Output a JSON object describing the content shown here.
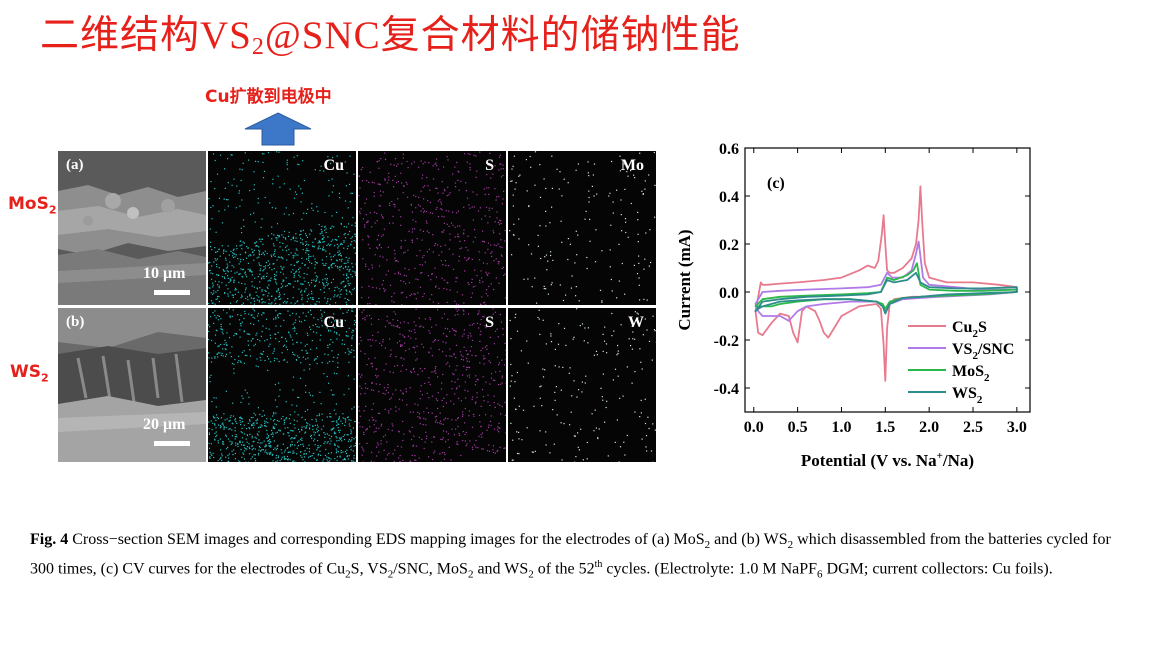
{
  "slide": {
    "title_pre": "二维结构",
    "title_vs": "VS",
    "title_sub": "2",
    "title_post_latin": "@SNC",
    "title_post": "复合材料的储钠性能"
  },
  "arrow_label": "Cu扩散到电极中",
  "rows": [
    {
      "label": "MoS",
      "label_sub": "2",
      "sem_label": "(a)",
      "scale": "10 μm",
      "elements": [
        "Cu",
        "S",
        "Mo"
      ]
    },
    {
      "label": "WS",
      "label_sub": "2",
      "sem_label": "(b)",
      "scale": "20 μm",
      "elements": [
        "Cu",
        "S",
        "W"
      ]
    }
  ],
  "colors": {
    "red": "#e6211b",
    "arrow": "#3d78c8",
    "cu_map": "#27c0c0",
    "s_map": "#a53aa5",
    "mo_map": "#cfe8cf"
  },
  "chart_data": {
    "type": "line",
    "panel_label": "(c)",
    "xlabel": "Potential (V vs. Na",
    "xlabel_sup": "+",
    "xlabel_end": "/Na)",
    "ylabel": "Current (mA)",
    "xlim": [
      -0.1,
      3.15
    ],
    "ylim": [
      -0.5,
      0.6
    ],
    "xticks": [
      "0.0",
      "0.5",
      "1.0",
      "1.5",
      "2.0",
      "2.5",
      "3.0"
    ],
    "yticks": [
      "0.6",
      "0.4",
      "0.2",
      "0.0",
      "-0.2",
      "-0.4"
    ],
    "legend_position": "lower-right",
    "series": [
      {
        "name": "Cu2S",
        "color": "#e87a8e",
        "x": [
          0.02,
          0.05,
          0.08,
          0.1,
          0.15,
          0.3,
          0.5,
          0.8,
          1.0,
          1.2,
          1.3,
          1.38,
          1.42,
          1.46,
          1.48,
          1.5,
          1.52,
          1.55,
          1.6,
          1.7,
          1.8,
          1.85,
          1.88,
          1.9,
          1.92,
          1.95,
          2.0,
          2.2,
          2.5,
          2.8,
          3.0,
          3.0,
          2.8,
          2.5,
          2.3,
          2.2,
          2.0,
          1.9,
          1.8,
          1.7,
          1.6,
          1.55,
          1.52,
          1.5,
          1.48,
          1.45,
          1.4,
          1.2,
          1.0,
          0.9,
          0.85,
          0.8,
          0.75,
          0.7,
          0.6,
          0.55,
          0.5,
          0.45,
          0.4,
          0.3,
          0.2,
          0.1,
          0.05,
          0.02
        ],
        "y": [
          -0.08,
          -0.02,
          0.04,
          0.03,
          0.03,
          0.035,
          0.04,
          0.05,
          0.06,
          0.09,
          0.11,
          0.1,
          0.13,
          0.24,
          0.32,
          0.2,
          0.09,
          0.08,
          0.08,
          0.1,
          0.14,
          0.2,
          0.3,
          0.44,
          0.3,
          0.12,
          0.06,
          0.04,
          0.04,
          0.03,
          0.02,
          0.0,
          -0.005,
          -0.01,
          -0.01,
          -0.015,
          -0.02,
          -0.02,
          -0.02,
          -0.025,
          -0.03,
          -0.05,
          -0.15,
          -0.37,
          -0.22,
          -0.07,
          -0.05,
          -0.06,
          -0.1,
          -0.16,
          -0.19,
          -0.17,
          -0.12,
          -0.08,
          -0.06,
          -0.08,
          -0.21,
          -0.17,
          -0.1,
          -0.09,
          -0.13,
          -0.18,
          -0.17,
          -0.08
        ]
      },
      {
        "name": "VS2/SNC",
        "color": "#b07ae8",
        "x": [
          0.02,
          0.1,
          0.3,
          0.6,
          1.0,
          1.3,
          1.45,
          1.52,
          1.58,
          1.7,
          1.8,
          1.85,
          1.88,
          1.9,
          1.93,
          2.0,
          2.3,
          2.6,
          3.0,
          3.0,
          2.7,
          2.4,
          2.1,
          1.9,
          1.7,
          1.55,
          1.5,
          1.47,
          1.4,
          1.1,
          0.8,
          0.6,
          0.5,
          0.4,
          0.3,
          0.2,
          0.1,
          0.05,
          0.02
        ],
        "y": [
          -0.05,
          0.0,
          0.005,
          0.01,
          0.015,
          0.02,
          0.03,
          0.08,
          0.06,
          0.06,
          0.09,
          0.16,
          0.21,
          0.15,
          0.06,
          0.03,
          0.02,
          0.01,
          0.01,
          0.0,
          -0.01,
          -0.015,
          -0.02,
          -0.025,
          -0.03,
          -0.05,
          -0.08,
          -0.06,
          -0.04,
          -0.04,
          -0.05,
          -0.06,
          -0.08,
          -0.12,
          -0.1,
          -0.1,
          -0.1,
          -0.08,
          -0.05
        ]
      },
      {
        "name": "MoS2",
        "color": "#2bb84a",
        "x": [
          0.02,
          0.1,
          0.3,
          0.6,
          1.0,
          1.3,
          1.45,
          1.52,
          1.6,
          1.75,
          1.82,
          1.86,
          1.88,
          1.9,
          2.0,
          2.3,
          2.6,
          3.0,
          3.0,
          2.6,
          2.2,
          1.9,
          1.7,
          1.55,
          1.5,
          1.47,
          1.4,
          1.1,
          0.8,
          0.5,
          0.3,
          0.2,
          0.1,
          0.05,
          0.02
        ],
        "y": [
          -0.06,
          -0.03,
          -0.02,
          -0.015,
          -0.01,
          -0.005,
          0.0,
          0.06,
          0.05,
          0.07,
          0.09,
          0.12,
          0.08,
          0.03,
          0.01,
          0.005,
          0.005,
          0.01,
          0.0,
          -0.01,
          -0.015,
          -0.02,
          -0.025,
          -0.04,
          -0.07,
          -0.05,
          -0.04,
          -0.03,
          -0.03,
          -0.04,
          -0.05,
          -0.06,
          -0.06,
          -0.06,
          -0.06
        ]
      },
      {
        "name": "WS2",
        "color": "#2e8c8c",
        "x": [
          0.02,
          0.1,
          0.3,
          0.6,
          1.0,
          1.3,
          1.45,
          1.52,
          1.6,
          1.75,
          1.85,
          1.9,
          2.0,
          2.3,
          2.6,
          3.0,
          3.0,
          2.6,
          2.2,
          1.9,
          1.7,
          1.55,
          1.5,
          1.47,
          1.4,
          1.1,
          0.8,
          0.5,
          0.3,
          0.2,
          0.1,
          0.05,
          0.02
        ],
        "y": [
          -0.08,
          -0.04,
          -0.03,
          -0.02,
          -0.015,
          -0.01,
          0.0,
          0.05,
          0.04,
          0.05,
          0.08,
          0.04,
          0.02,
          0.015,
          0.015,
          0.02,
          0.0,
          -0.005,
          -0.01,
          -0.02,
          -0.025,
          -0.05,
          -0.09,
          -0.06,
          -0.04,
          -0.03,
          -0.03,
          -0.035,
          -0.04,
          -0.05,
          -0.06,
          -0.07,
          -0.08
        ]
      }
    ]
  },
  "legend": [
    {
      "base": "Cu",
      "sub": "2",
      "tail": "S"
    },
    {
      "base": "VS",
      "sub": "2",
      "tail": "/SNC"
    },
    {
      "base": "MoS",
      "sub": "2",
      "tail": ""
    },
    {
      "base": "WS",
      "sub": "2",
      "tail": ""
    }
  ],
  "caption": {
    "fig": "Fig. 4",
    "t1": " Cross−section SEM images and corresponding EDS mapping images for the electrodes of (a) MoS",
    "t2": "  and (b) WS",
    "t3": " which disassembled from the batteries cycled for 300 times, (c) CV curves for the electrodes of Cu",
    "t4": "S, VS",
    "t5": "/SNC, MoS",
    "t6": " and WS",
    "t7": " of the 52",
    "th": "th",
    "t8": " cycles. (Electrolyte: 1.0 M NaPF",
    "six": "6",
    "t9": " DGM; current collectors: Cu foils).",
    "two": "2"
  }
}
